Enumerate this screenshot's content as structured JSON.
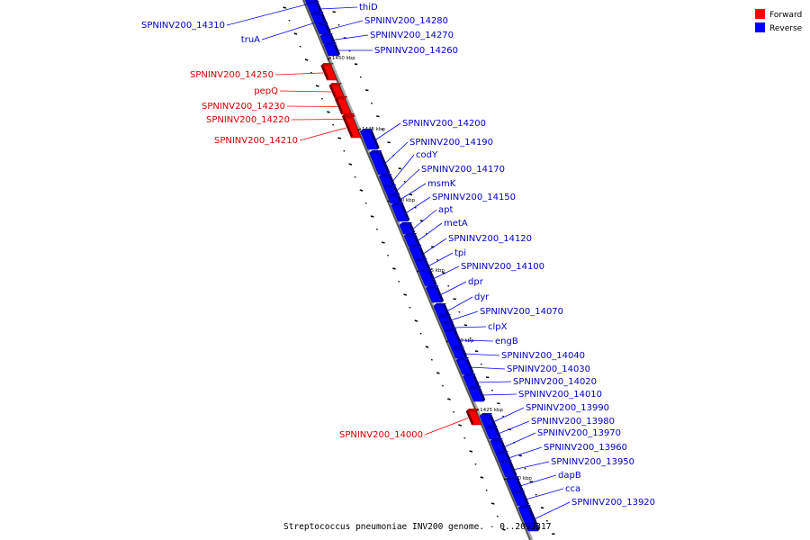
{
  "colors": {
    "forward": "#ff0000",
    "forward_text": "#d40000",
    "reverse": "#0000ff",
    "reverse_text": "#0000c8",
    "backbone": "#555555"
  },
  "legend": {
    "forward_label": "Forward",
    "reverse_label": "Reverse"
  },
  "caption": "Streptococcus pneumoniae INV200 genome. - 0..2093317",
  "ticks": [
    "1450 kbp",
    "1445 kbp",
    "1440 kbp",
    "1435 kbp",
    "1430 kbp",
    "1425 kbp",
    "1420 kbp"
  ],
  "genes": [
    {
      "name": "SPNINV200_14310",
      "strand": "reverse"
    },
    {
      "name": "thiD",
      "strand": "reverse"
    },
    {
      "name": "truA",
      "strand": "reverse"
    },
    {
      "name": "SPNINV200_14280",
      "strand": "reverse"
    },
    {
      "name": "SPNINV200_14270",
      "strand": "reverse"
    },
    {
      "name": "SPNINV200_14260",
      "strand": "reverse"
    },
    {
      "name": "SPNINV200_14250",
      "strand": "forward"
    },
    {
      "name": "pepQ",
      "strand": "forward"
    },
    {
      "name": "SPNINV200_14230",
      "strand": "forward"
    },
    {
      "name": "SPNINV200_14220",
      "strand": "forward"
    },
    {
      "name": "SPNINV200_14210",
      "strand": "forward"
    },
    {
      "name": "SPNINV200_14200",
      "strand": "reverse"
    },
    {
      "name": "SPNINV200_14190",
      "strand": "reverse"
    },
    {
      "name": "codY",
      "strand": "reverse"
    },
    {
      "name": "SPNINV200_14170",
      "strand": "reverse"
    },
    {
      "name": "msmK",
      "strand": "reverse"
    },
    {
      "name": "SPNINV200_14150",
      "strand": "reverse"
    },
    {
      "name": "apt",
      "strand": "reverse"
    },
    {
      "name": "metA",
      "strand": "reverse"
    },
    {
      "name": "SPNINV200_14120",
      "strand": "reverse"
    },
    {
      "name": "tpi",
      "strand": "reverse"
    },
    {
      "name": "SPNINV200_14100",
      "strand": "reverse"
    },
    {
      "name": "dpr",
      "strand": "reverse"
    },
    {
      "name": "dyr",
      "strand": "reverse"
    },
    {
      "name": "SPNINV200_14070",
      "strand": "reverse"
    },
    {
      "name": "clpX",
      "strand": "reverse"
    },
    {
      "name": "engB",
      "strand": "reverse"
    },
    {
      "name": "SPNINV200_14040",
      "strand": "reverse"
    },
    {
      "name": "SPNINV200_14030",
      "strand": "reverse"
    },
    {
      "name": "SPNINV200_14020",
      "strand": "reverse"
    },
    {
      "name": "SPNINV200_14010",
      "strand": "reverse"
    },
    {
      "name": "SPNINV200_13990",
      "strand": "reverse"
    },
    {
      "name": "SPNINV200_14000",
      "strand": "forward"
    },
    {
      "name": "SPNINV200_13980",
      "strand": "reverse"
    },
    {
      "name": "SPNINV200_13970",
      "strand": "reverse"
    },
    {
      "name": "SPNINV200_13960",
      "strand": "reverse"
    },
    {
      "name": "SPNINV200_13950",
      "strand": "reverse"
    },
    {
      "name": "dapB",
      "strand": "reverse"
    },
    {
      "name": "cca",
      "strand": "reverse"
    },
    {
      "name": "SPNINV200_13920",
      "strand": "reverse"
    }
  ]
}
